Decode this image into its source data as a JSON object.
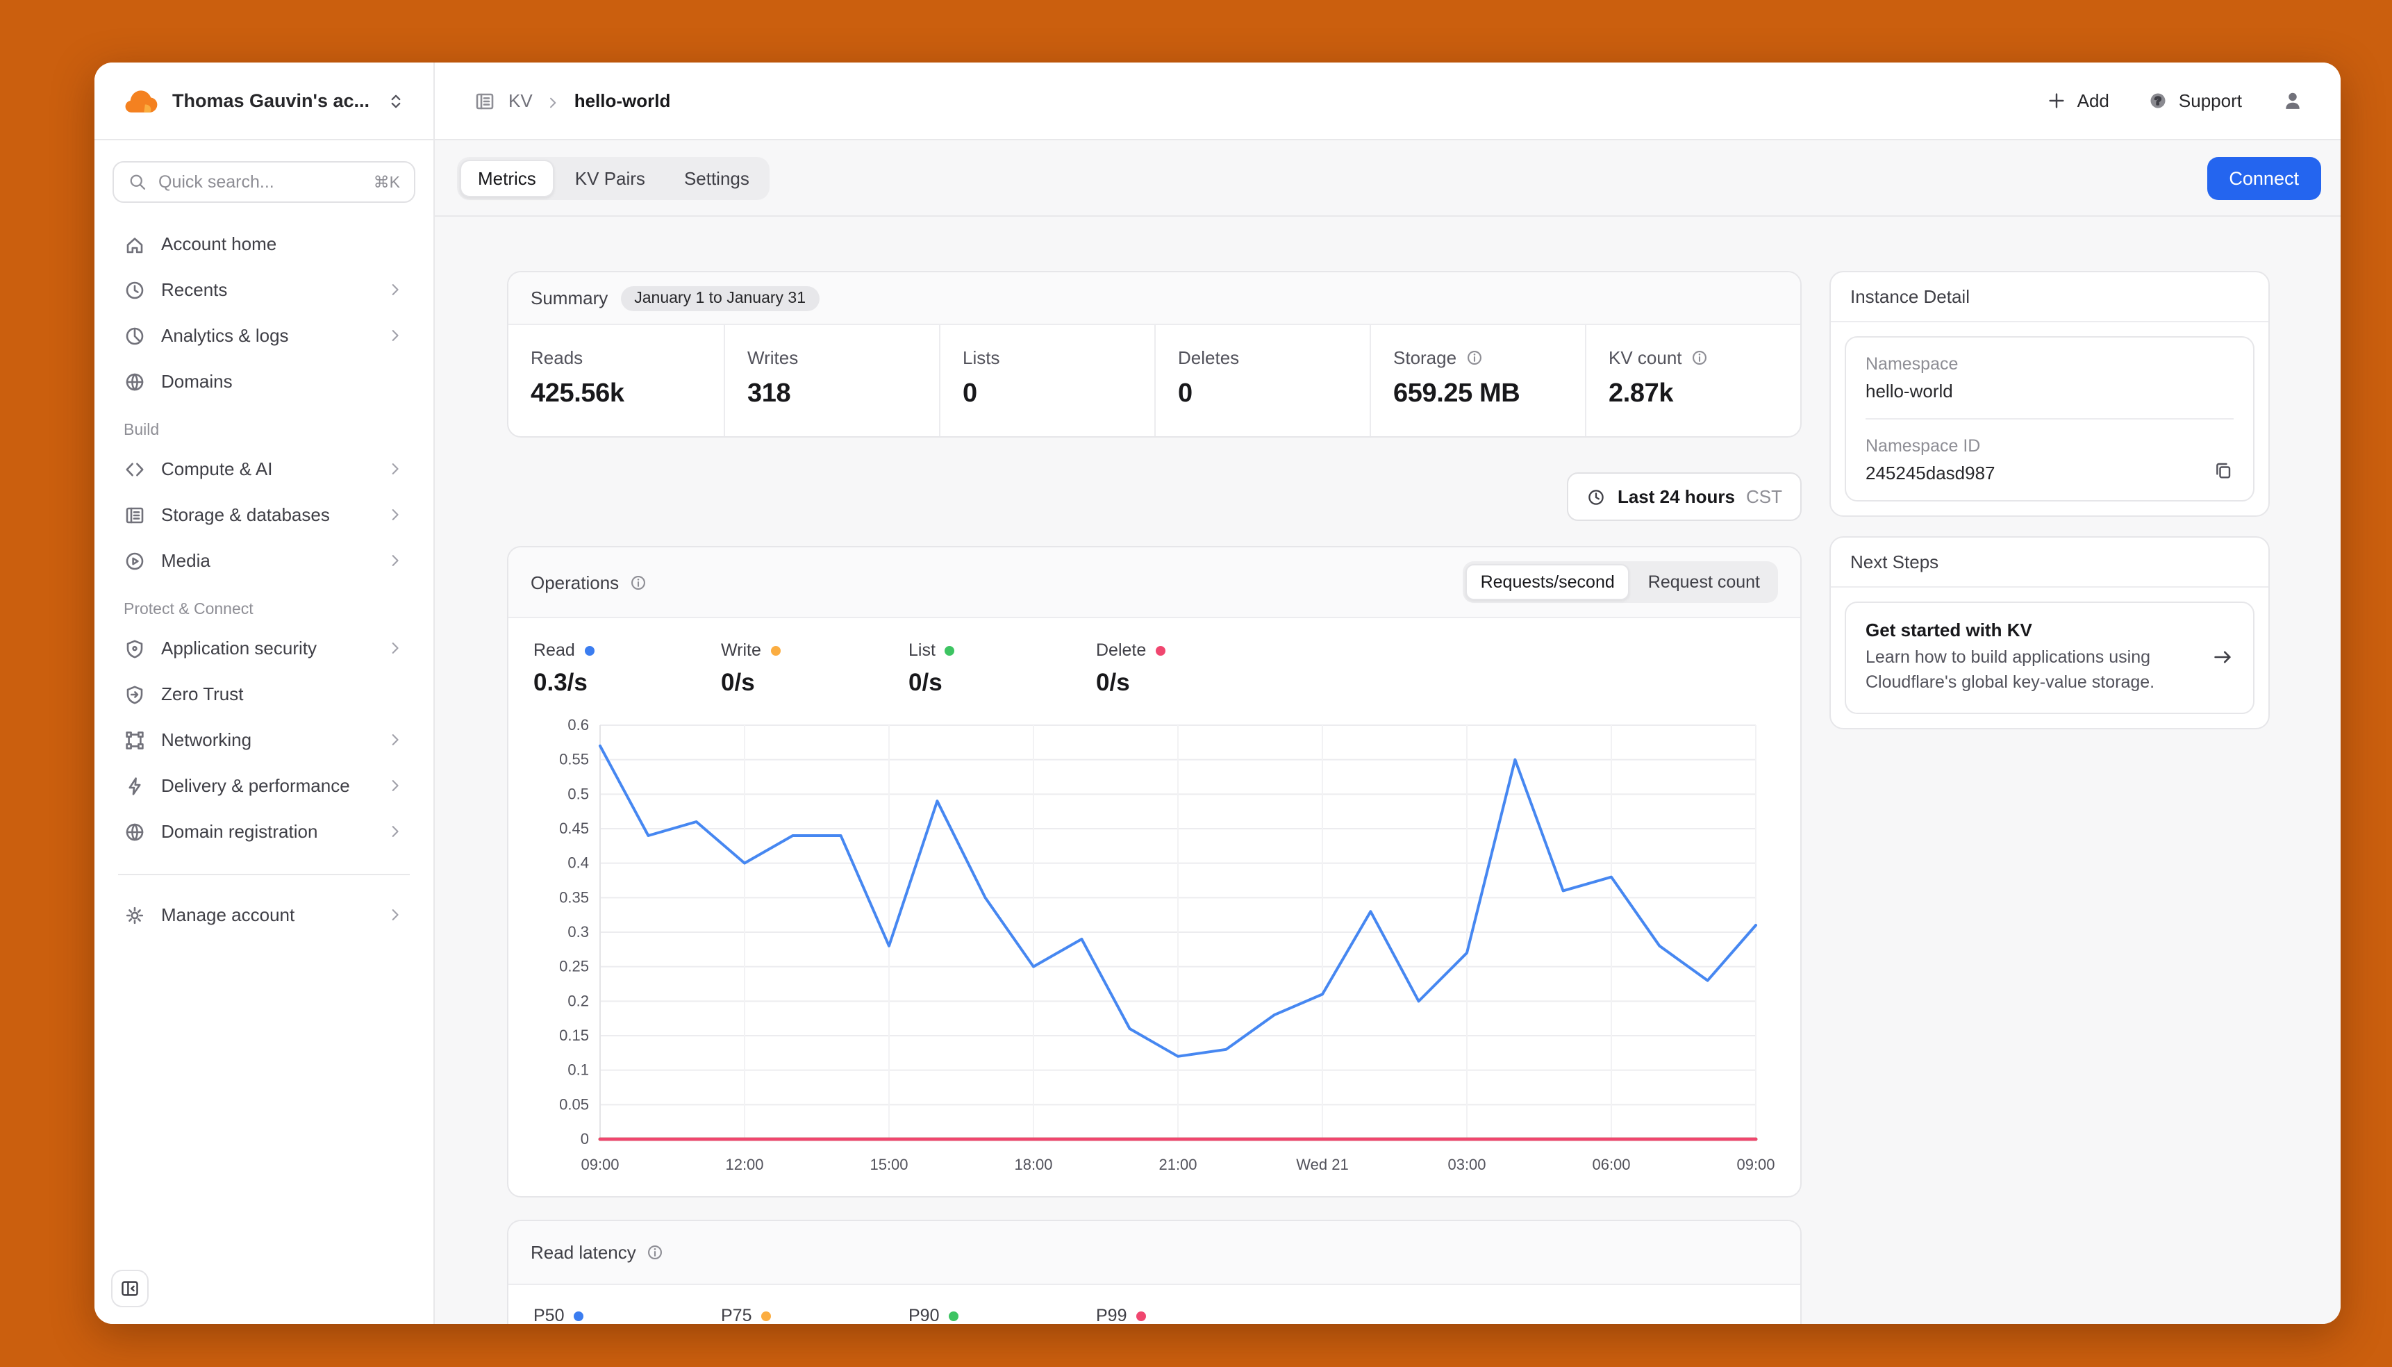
{
  "header": {
    "account_name": "Thomas Gauvin's ac...",
    "breadcrumb": {
      "section": "KV",
      "page": "hello-world"
    },
    "actions": {
      "add": "Add",
      "support": "Support"
    }
  },
  "sidebar": {
    "search": {
      "placeholder": "Quick search...",
      "shortcut": "⌘K"
    },
    "primary": [
      {
        "label": "Account home"
      },
      {
        "label": "Recents"
      },
      {
        "label": "Analytics & logs"
      },
      {
        "label": "Domains"
      }
    ],
    "sections": [
      {
        "title": "Build",
        "items": [
          {
            "label": "Compute & AI"
          },
          {
            "label": "Storage & databases"
          },
          {
            "label": "Media"
          }
        ]
      },
      {
        "title": "Protect & Connect",
        "items": [
          {
            "label": "Application security"
          },
          {
            "label": "Zero Trust"
          },
          {
            "label": "Networking"
          },
          {
            "label": "Delivery & performance"
          },
          {
            "label": "Domain registration"
          }
        ]
      }
    ],
    "footer_item": {
      "label": "Manage account"
    }
  },
  "tabs": {
    "items": [
      "Metrics",
      "KV Pairs",
      "Settings"
    ],
    "active_index": 0
  },
  "connect_label": "Connect",
  "summary": {
    "title": "Summary",
    "date_range": "January 1 to January 31",
    "stats": [
      {
        "label": "Reads",
        "value": "425.56k",
        "info": false
      },
      {
        "label": "Writes",
        "value": "318",
        "info": false
      },
      {
        "label": "Lists",
        "value": "0",
        "info": false
      },
      {
        "label": "Deletes",
        "value": "0",
        "info": false
      },
      {
        "label": "Storage",
        "value": "659.25 MB",
        "info": true
      },
      {
        "label": "KV count",
        "value": "2.87k",
        "info": true
      }
    ]
  },
  "time_filter": {
    "label": "Last 24 hours",
    "timezone": "CST"
  },
  "operations": {
    "title": "Operations",
    "views": [
      "Requests/second",
      "Request count"
    ],
    "active_view": 0,
    "legend": [
      {
        "label": "Read",
        "value": "0.3/s",
        "color": "#3B7DF0"
      },
      {
        "label": "Write",
        "value": "0/s",
        "color": "#FBAD41"
      },
      {
        "label": "List",
        "value": "0/s",
        "color": "#3DC462"
      },
      {
        "label": "Delete",
        "value": "0/s",
        "color": "#F0466F"
      }
    ]
  },
  "chart_data": {
    "type": "line",
    "title": "Operations (requests/second)",
    "xlabel": "time",
    "ylabel": "requests/second",
    "ylim": [
      0,
      0.6
    ],
    "y_ticks": [
      0,
      0.05,
      0.1,
      0.15,
      0.2,
      0.25,
      0.3,
      0.35,
      0.4,
      0.45,
      0.5,
      0.55,
      0.6
    ],
    "grid": true,
    "legend_position": "above-chart",
    "x": [
      "09:00",
      "10:00",
      "11:00",
      "12:00",
      "13:00",
      "14:00",
      "15:00",
      "16:00",
      "17:00",
      "18:00",
      "19:00",
      "20:00",
      "21:00",
      "22:00",
      "23:00",
      "Wed 21",
      "01:00",
      "02:00",
      "03:00",
      "04:00",
      "05:00",
      "06:00",
      "07:00",
      "08:00",
      "09:00"
    ],
    "x_tick_indices": [
      0,
      3,
      6,
      9,
      12,
      15,
      18,
      21,
      24
    ],
    "x_tick_labels": [
      "09:00",
      "12:00",
      "15:00",
      "18:00",
      "21:00",
      "Wed 21",
      "03:00",
      "06:00",
      "09:00"
    ],
    "series": [
      {
        "name": "Read",
        "color": "#4687F1",
        "values": [
          0.57,
          0.44,
          0.46,
          0.4,
          0.44,
          0.44,
          0.28,
          0.49,
          0.35,
          0.25,
          0.29,
          0.16,
          0.12,
          0.13,
          0.18,
          0.21,
          0.33,
          0.2,
          0.27,
          0.55,
          0.36,
          0.38,
          0.28,
          0.23,
          0.31
        ]
      },
      {
        "name": "Write",
        "color": "#FBAD41",
        "values": [
          0,
          0,
          0,
          0,
          0,
          0,
          0,
          0,
          0,
          0,
          0,
          0,
          0,
          0,
          0,
          0,
          0,
          0,
          0,
          0,
          0,
          0,
          0,
          0,
          0
        ]
      },
      {
        "name": "List",
        "color": "#3DC462",
        "values": [
          0,
          0,
          0,
          0,
          0,
          0,
          0,
          0,
          0,
          0,
          0,
          0,
          0,
          0,
          0,
          0,
          0,
          0,
          0,
          0,
          0,
          0,
          0,
          0,
          0
        ]
      },
      {
        "name": "Delete",
        "color": "#F0466F",
        "values": [
          0,
          0,
          0,
          0,
          0,
          0,
          0,
          0,
          0,
          0,
          0,
          0,
          0,
          0,
          0,
          0,
          0,
          0,
          0,
          0,
          0,
          0,
          0,
          0,
          0
        ]
      }
    ]
  },
  "read_latency": {
    "title": "Read latency",
    "legend": [
      {
        "label": "P50",
        "color": "#3B7DF0"
      },
      {
        "label": "P75",
        "color": "#FBAD41"
      },
      {
        "label": "P90",
        "color": "#3DC462"
      },
      {
        "label": "P99",
        "color": "#F0466F"
      }
    ]
  },
  "instance_detail": {
    "title": "Instance Detail",
    "namespace_label": "Namespace",
    "namespace_value": "hello-world",
    "namespace_id_label": "Namespace ID",
    "namespace_id_value": "245245dasd987"
  },
  "next_steps": {
    "title": "Next Steps",
    "card_title": "Get started with KV",
    "card_body": "Learn how to build applications using Cloudflare's global key-value storage."
  }
}
